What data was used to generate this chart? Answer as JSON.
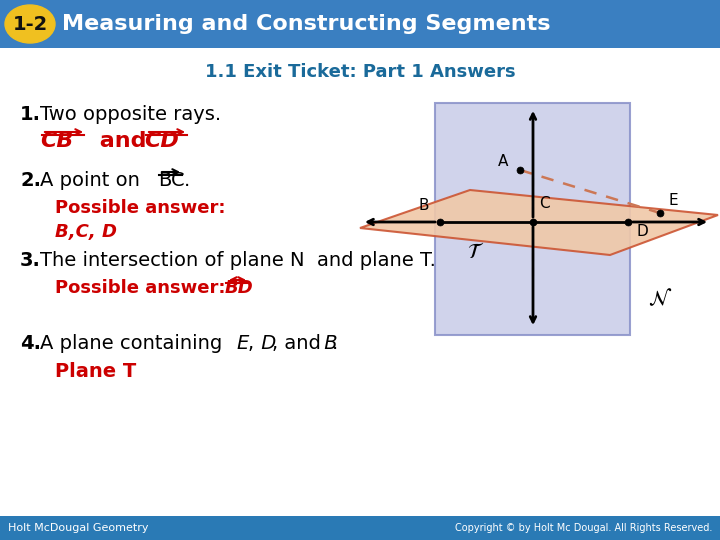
{
  "header_bg": "#3a7fc1",
  "header_text": "Measuring and Constructing Segments",
  "header_badge_bg": "#f0c020",
  "header_badge_text": "1-2",
  "subtitle": "1.1 Exit Ticket: Part 1 Answers",
  "subtitle_color": "#1a6a9a",
  "body_bg": "#ffffff",
  "footer_bg": "#2a7ab5",
  "footer_left": "Holt McDougal Geometry",
  "footer_right": "Copyright © by Holt Mc Dougal. All Rights Reserved.",
  "red": "#cc0000",
  "plane_N_face": "#c8cce8",
  "plane_N_edge": "#8890c8",
  "plane_T_face": "#f0c8a8",
  "plane_T_edge": "#cc5533"
}
